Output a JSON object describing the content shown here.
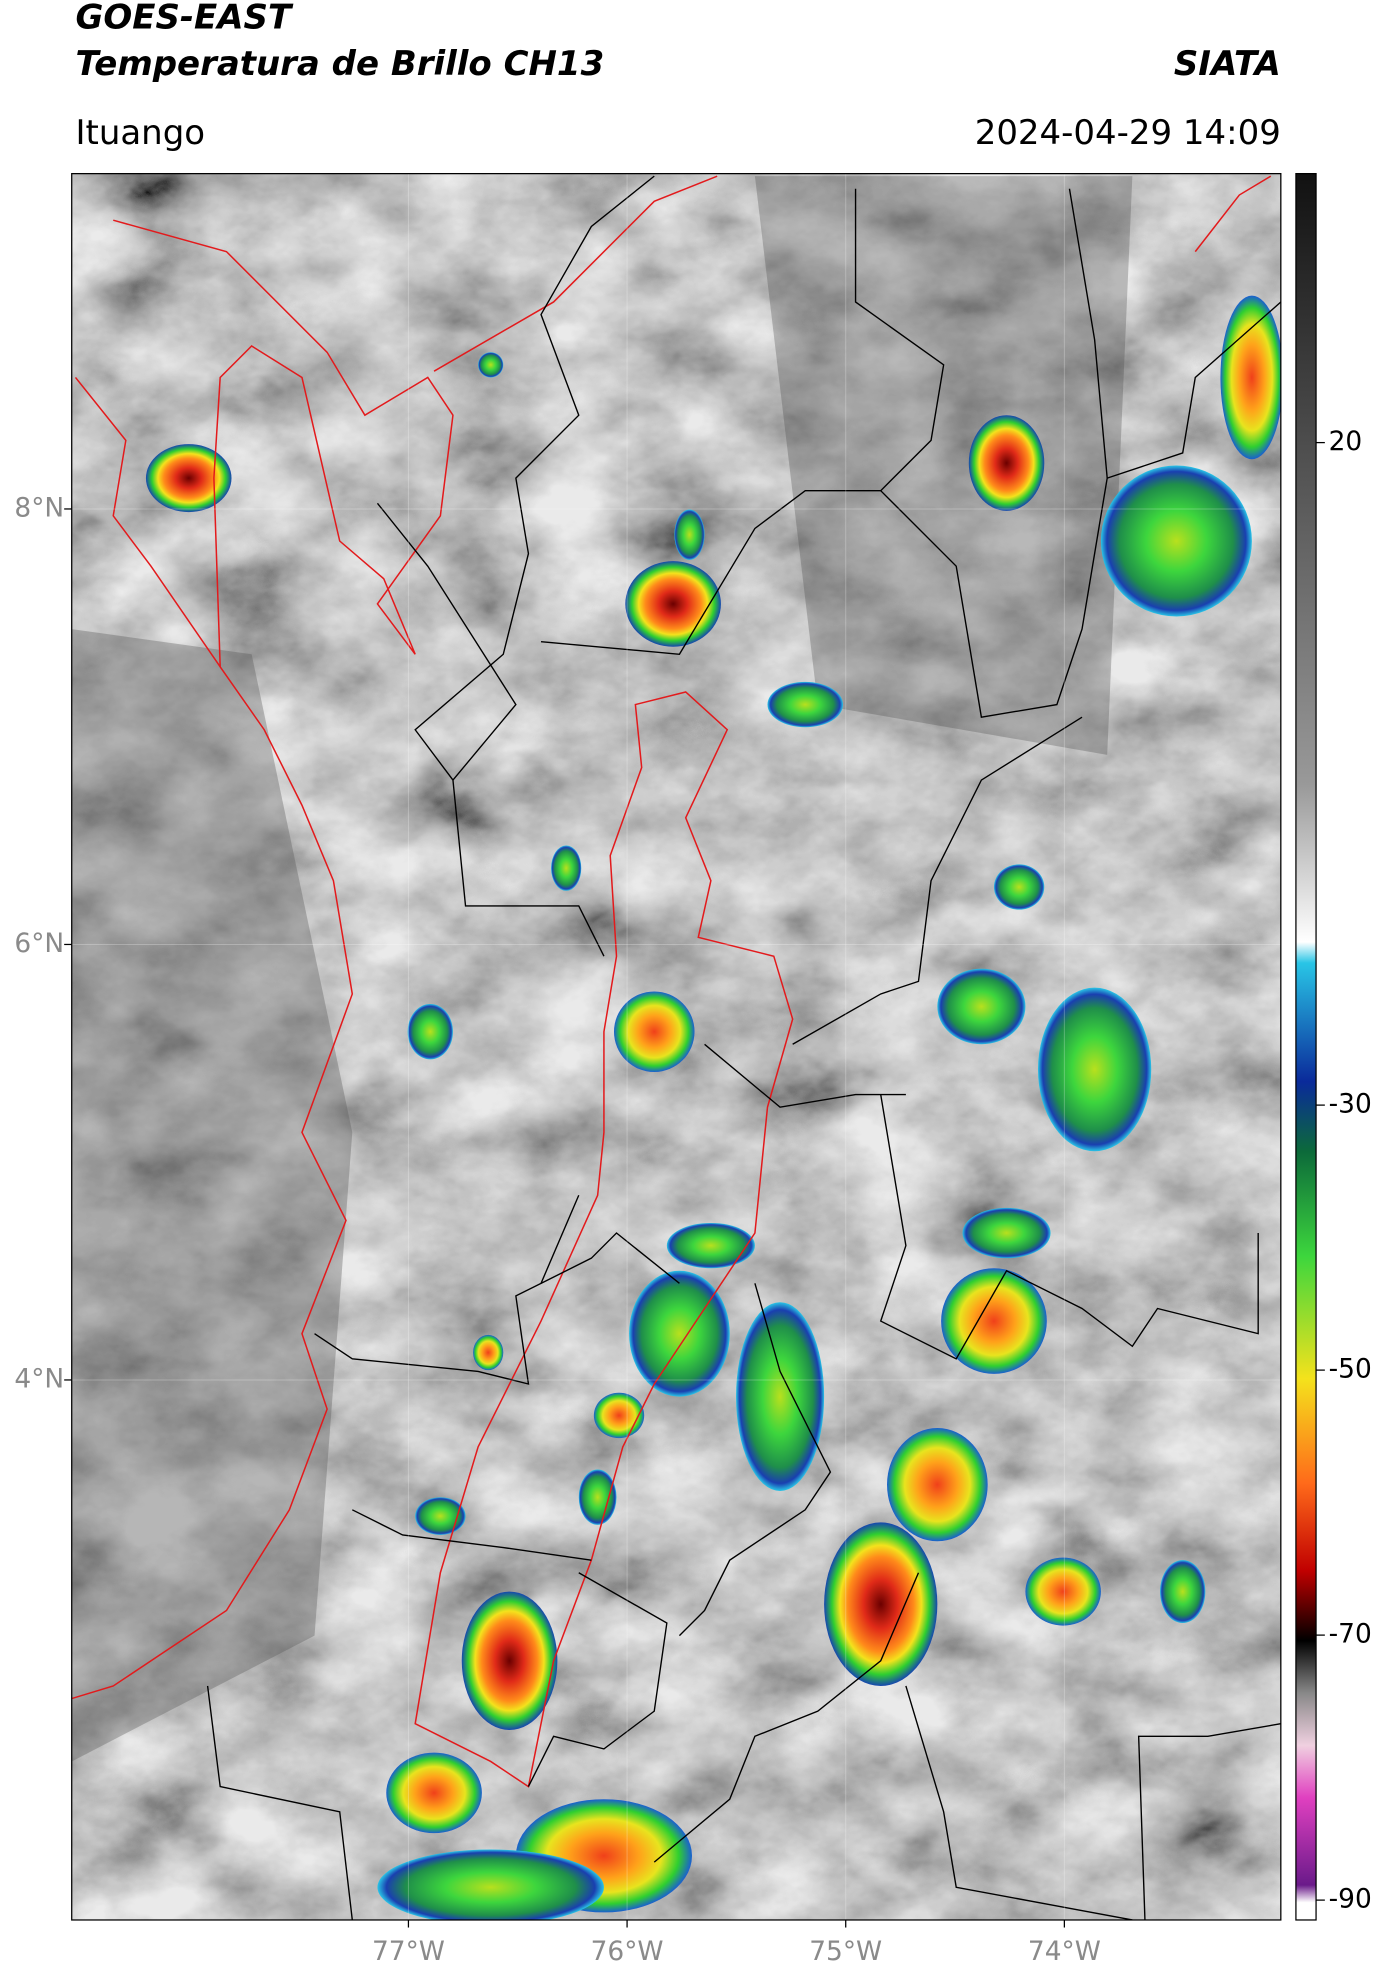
{
  "header": {
    "title": "GOES-EAST",
    "subtitle": "Temperatura de Brillo CH13",
    "brand": "SIATA",
    "location": "Ituango",
    "datetime": "2024-04-29 14:09"
  },
  "map": {
    "xlim": [
      -78.54,
      -73.01
    ],
    "ylim": [
      1.52,
      9.54
    ],
    "xticks": [
      {
        "value": -77,
        "label": "77°W"
      },
      {
        "value": -76,
        "label": "76°W"
      },
      {
        "value": -75,
        "label": "75°W"
      },
      {
        "value": -74,
        "label": "74°W"
      }
    ],
    "yticks": [
      {
        "value": 8,
        "label": "8°N"
      },
      {
        "value": 6,
        "label": "6°N"
      },
      {
        "value": 4,
        "label": "4°N"
      }
    ],
    "grid": true
  },
  "colorbar": {
    "lim": [
      -91.5,
      40.3
    ],
    "ticks": [
      20,
      -30,
      -50,
      -70,
      -90
    ]
  }
}
